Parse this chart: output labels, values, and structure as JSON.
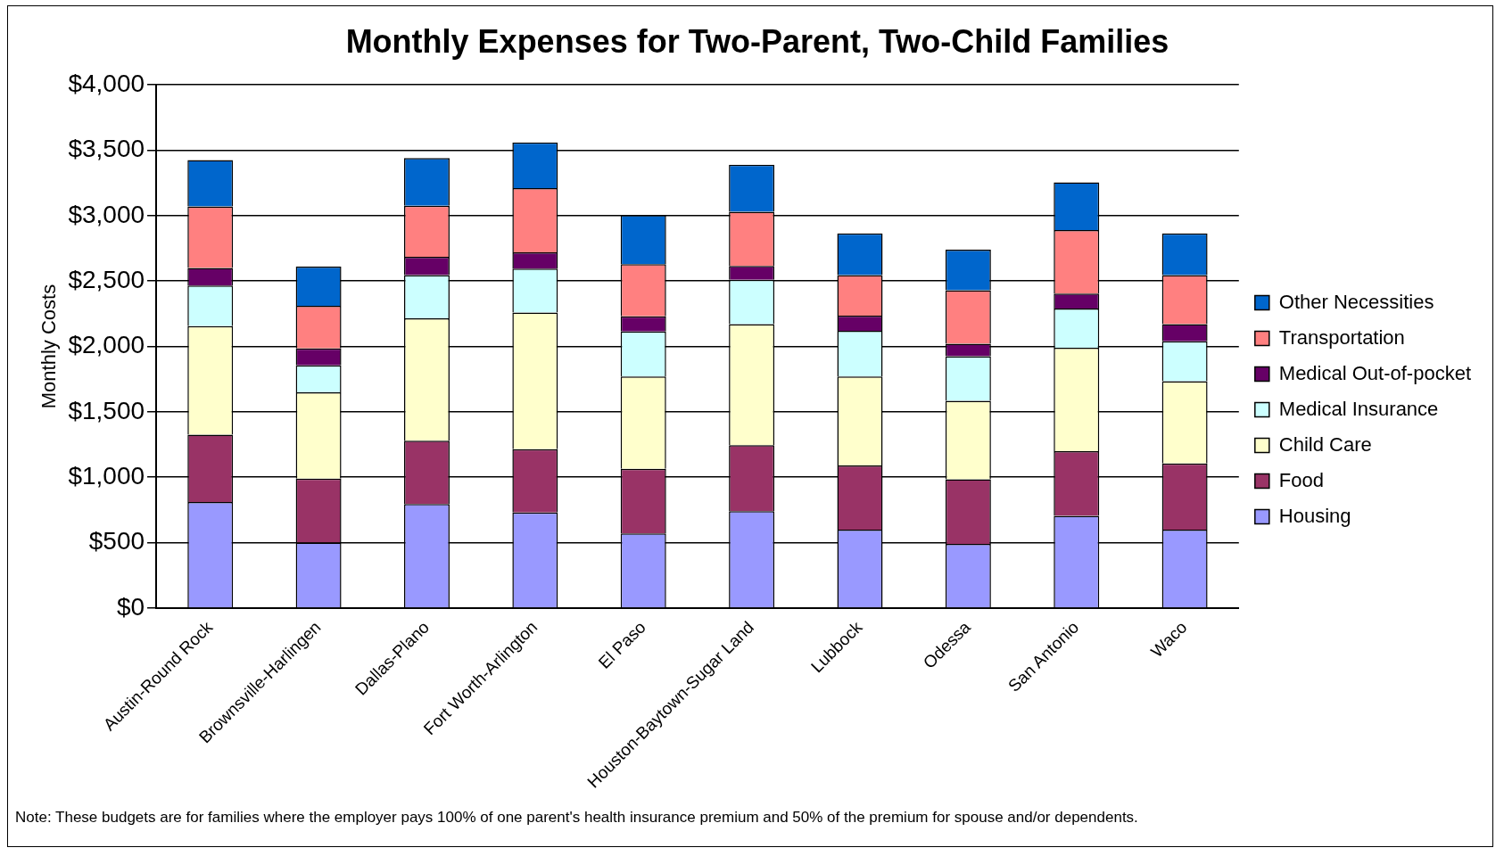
{
  "chart_data": {
    "type": "bar",
    "title": "Monthly Expenses for Two-Parent, Two-Child Families",
    "ylabel": "Monthly Costs",
    "categories": [
      "Austin-Round Rock",
      "Brownsville-Harlingen",
      "Dallas-Plano",
      "Fort Worth-Arlington",
      "El Paso",
      "Houston-Baytown-Sugar Land",
      "Lubbock",
      "Odessa",
      "San Antonio",
      "Waco"
    ],
    "series": [
      {
        "name": "Housing",
        "color": "#9999ff",
        "values": [
          810,
          500,
          795,
          730,
          570,
          740,
          600,
          490,
          705,
          600
        ]
      },
      {
        "name": "Food",
        "color": "#993366",
        "values": [
          515,
          490,
          485,
          485,
          495,
          505,
          490,
          495,
          495,
          505
        ]
      },
      {
        "name": "Child Care",
        "color": "#ffffcc",
        "values": [
          830,
          660,
          935,
          1045,
          705,
          925,
          680,
          600,
          790,
          630
        ]
      },
      {
        "name": "Medical Insurance",
        "color": "#ccffff",
        "values": [
          310,
          205,
          330,
          335,
          345,
          340,
          350,
          340,
          300,
          305
        ]
      },
      {
        "name": "Medical Out-of-pocket",
        "color": "#660066",
        "values": [
          135,
          130,
          140,
          125,
          115,
          105,
          115,
          95,
          115,
          130
        ]
      },
      {
        "name": "Transportation",
        "color": "#ff8080",
        "values": [
          470,
          325,
          390,
          490,
          400,
          415,
          310,
          410,
          485,
          375
        ]
      },
      {
        "name": "Other Necessities",
        "color": "#0066cc",
        "values": [
          355,
          300,
          365,
          350,
          375,
          360,
          320,
          310,
          365,
          320
        ]
      }
    ],
    "stacked": true,
    "ylim": [
      0,
      4000
    ],
    "yticks": [
      {
        "value": 0,
        "label": "$0"
      },
      {
        "value": 500,
        "label": "$500"
      },
      {
        "value": 1000,
        "label": "$1,000"
      },
      {
        "value": 1500,
        "label": "$1,500"
      },
      {
        "value": 2000,
        "label": "$2,000"
      },
      {
        "value": 2500,
        "label": "$2,500"
      },
      {
        "value": 3000,
        "label": "$3,000"
      },
      {
        "value": 3500,
        "label": "$3,500"
      },
      {
        "value": 4000,
        "label": "$4,000"
      }
    ],
    "grid": "y",
    "legend": "right",
    "annotations": [
      "Note: These budgets are for families where the employer pays 100% of one parent's health insurance premium and  50% of the premium for spouse and/or dependents."
    ]
  }
}
